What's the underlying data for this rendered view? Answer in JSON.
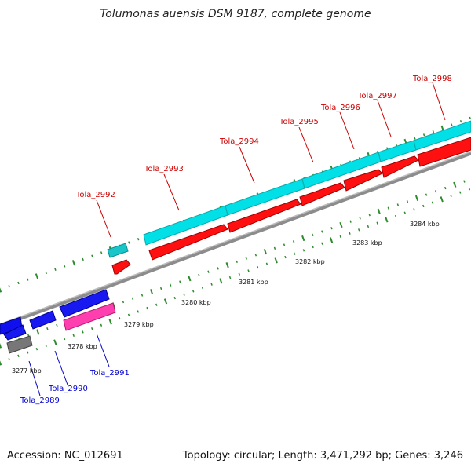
{
  "title": "Tolumonas auensis DSM 9187, complete genome",
  "footer": {
    "accession": "Accession: NC_012691",
    "summary": "Topology: circular; Length: 3,471,292 bp; Genes: 3,246"
  },
  "colors": {
    "forward_gene": "#ff0000",
    "forward_product": "#00d0d8",
    "reverse_gene": "#0000ff",
    "reverse_product": "#ff3fb0",
    "other": "#777777",
    "backbone": "#888888",
    "tick": "#2e8b2e",
    "label_forward": "#cc0000",
    "label_reverse": "#0000cc"
  },
  "kbp_labels": [
    "3277 kbp",
    "3278 kbp",
    "3279 kbp",
    "3280 kbp",
    "3281 kbp",
    "3282 kbp",
    "3283 kbp",
    "3284 kbp"
  ],
  "forward_labels": [
    "Tola_2992",
    "Tola_2993",
    "Tola_2994",
    "Tola_2995",
    "Tola_2996",
    "Tola_2997",
    "Tola_2998"
  ],
  "reverse_labels": [
    "Tola_2989",
    "Tola_2990",
    "Tola_2991"
  ]
}
